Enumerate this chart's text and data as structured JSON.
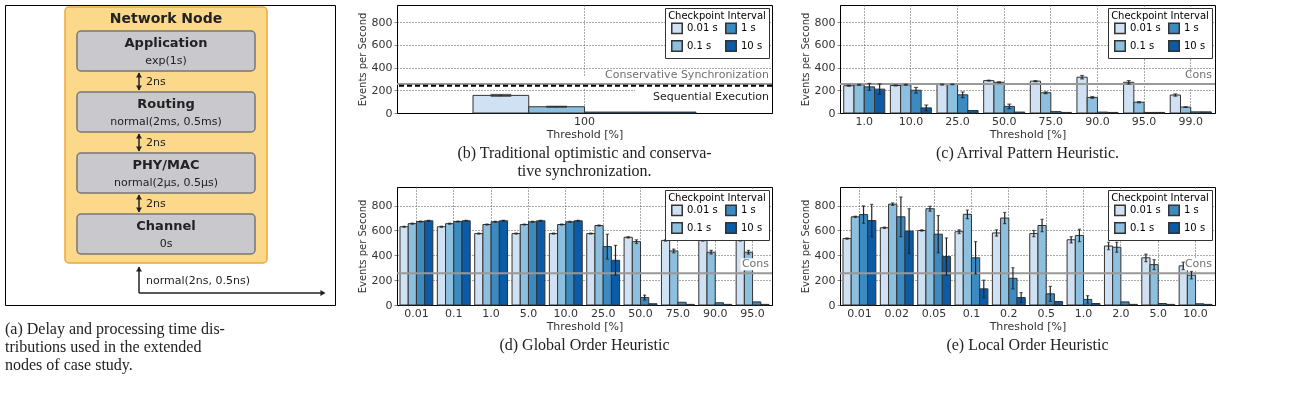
{
  "chart_data": [
    {
      "type": "other",
      "title": "Network Node",
      "annotations": [
        "Application",
        "exp(1s)",
        "2ns",
        "Routing",
        "normal(2ms, 0.5ms)",
        "2ns",
        "PHY/MAC",
        "normal(2µs, 0.5µs)",
        "2ns",
        "Channel",
        "0s",
        "normal(2ns, 0.5ns)",
        "(a) Delay and processing time dis-",
        "tributions used in the extended",
        "nodes of case study."
      ]
    },
    {
      "type": "bar",
      "categories": [
        "100"
      ],
      "xlabel": "Threshold [%]",
      "ylabel": "Events per Second",
      "legend_title": "Checkpoint Interval",
      "legend": "top right",
      "grid": true,
      "ylim": [
        0,
        950
      ],
      "yticks": [
        0,
        200,
        400,
        600,
        800
      ],
      "series": [
        {
          "name": "0.01 s",
          "color": "#cfe1f2",
          "values": [
            155
          ],
          "errors": [
            8
          ]
        },
        {
          "name": "0.1 s",
          "color": "#8dc0de",
          "values": [
            55
          ],
          "errors": [
            4
          ]
        },
        {
          "name": "1 s",
          "color": "#3b8bc2",
          "values": [
            8
          ]
        },
        {
          "name": "10 s",
          "color": "#0b5ba6",
          "values": [
            8
          ]
        }
      ],
      "ref_lines": [
        {
          "axis": "y",
          "value": 255,
          "label": "Conservative Synchronization",
          "color": "#999999",
          "line_style": "solid"
        },
        {
          "axis": "y",
          "value": 240,
          "label": "Sequential Execution",
          "color": "#000000",
          "line_style": "dashed"
        }
      ],
      "annotations": [
        "(b) Traditional optimistic and conserva-",
        "tive synchronization."
      ]
    },
    {
      "type": "bar",
      "categories": [
        "1.0",
        "10.0",
        "25.0",
        "50.0",
        "75.0",
        "90.0",
        "95.0",
        "99.0"
      ],
      "xlabel": "Threshold [%]",
      "ylabel": "Events per Second",
      "legend_title": "Checkpoint Interval",
      "legend": "top right",
      "grid": true,
      "ylim": [
        0,
        950
      ],
      "yticks": [
        0,
        200,
        400,
        600,
        800
      ],
      "series": [
        {
          "name": "0.01 s",
          "color": "#cfe1f2",
          "values": [
            240,
            242,
            250,
            285,
            280,
            315,
            270,
            158
          ],
          "errors": [
            4,
            4,
            4,
            4,
            5,
            15,
            15,
            10
          ]
        },
        {
          "name": "0.1 s",
          "color": "#8dc0de",
          "values": [
            248,
            248,
            252,
            270,
            178,
            137,
            95,
            52
          ],
          "errors": [
            4,
            3,
            3,
            5,
            8,
            8,
            5,
            3
          ]
        },
        {
          "name": "1 s",
          "color": "#3b8bc2",
          "values": [
            230,
            200,
            160,
            58,
            12,
            8,
            5,
            10
          ],
          "errors": [
            30,
            25,
            25,
            20,
            null,
            null,
            null,
            null
          ]
        },
        {
          "name": "10 s",
          "color": "#0b5ba6",
          "values": [
            210,
            45,
            22,
            8,
            5,
            5,
            5,
            10
          ],
          "errors": [
            45,
            25,
            null,
            null,
            null,
            null,
            null,
            null
          ]
        }
      ],
      "ref_lines": [
        {
          "axis": "y",
          "value": 255,
          "label": "Cons",
          "color": "#999999",
          "line_style": "solid"
        }
      ],
      "annotations": [
        "(c) Arrival Pattern Heuristic."
      ]
    },
    {
      "type": "bar",
      "categories": [
        "0.01",
        "0.1",
        "1.0",
        "5.0",
        "10.0",
        "25.0",
        "50.0",
        "75.0",
        "90.0",
        "95.0"
      ],
      "xlabel": "Threshold [%]",
      "ylabel": "Events per Second",
      "legend_title": "Checkpoint Interval",
      "legend": "top right",
      "grid": true,
      "ylim": [
        0,
        950
      ],
      "yticks": [
        0,
        200,
        400,
        600,
        800
      ],
      "series": [
        {
          "name": "0.01 s",
          "color": "#cfe1f2",
          "values": [
            630,
            630,
            575,
            575,
            575,
            575,
            545,
            520,
            520,
            520
          ],
          "errors": [
            4,
            4,
            4,
            4,
            4,
            4,
            5,
            5,
            5,
            5
          ]
        },
        {
          "name": "0.1 s",
          "color": "#8dc0de",
          "values": [
            655,
            655,
            648,
            648,
            648,
            640,
            510,
            435,
            425,
            425
          ],
          "errors": [
            4,
            4,
            4,
            4,
            4,
            4,
            15,
            15,
            15,
            15
          ]
        },
        {
          "name": "1 s",
          "color": "#3b8bc2",
          "values": [
            672,
            672,
            670,
            670,
            670,
            470,
            60,
            22,
            18,
            25
          ],
          "errors": [
            4,
            4,
            4,
            4,
            4,
            100,
            20,
            null,
            null,
            null
          ]
        },
        {
          "name": "10 s",
          "color": "#0b5ba6",
          "values": [
            678,
            678,
            678,
            678,
            678,
            360,
            10,
            5,
            5,
            5
          ],
          "errors": [
            4,
            4,
            4,
            4,
            4,
            120,
            null,
            null,
            null,
            null
          ]
        }
      ],
      "ref_lines": [
        {
          "axis": "y",
          "value": 255,
          "label": "Cons",
          "color": "#999999",
          "line_style": "solid"
        }
      ],
      "annotations": [
        "(d) Global Order Heuristic"
      ]
    },
    {
      "type": "bar",
      "categories": [
        "0.01",
        "0.02",
        "0.05",
        "0.1",
        "0.2",
        "0.5",
        "1.0",
        "2.0",
        "5.0",
        "10.0"
      ],
      "xlabel": "Threshold [%]",
      "ylabel": "Events per Second",
      "legend_title": "Checkpoint Interval",
      "legend": "top right",
      "grid": true,
      "ylim": [
        0,
        950
      ],
      "yticks": [
        0,
        200,
        400,
        600,
        800
      ],
      "series": [
        {
          "name": "0.01 s",
          "color": "#cfe1f2",
          "values": [
            535,
            622,
            600,
            590,
            580,
            575,
            525,
            475,
            380,
            315
          ],
          "errors": [
            5,
            5,
            5,
            15,
            25,
            25,
            25,
            30,
            30,
            30
          ]
        },
        {
          "name": "0.1 s",
          "color": "#8dc0de",
          "values": [
            710,
            812,
            775,
            730,
            700,
            640,
            560,
            465,
            325,
            240
          ],
          "errors": [
            5,
            10,
            20,
            35,
            45,
            50,
            50,
            40,
            40,
            30
          ]
        },
        {
          "name": "1 s",
          "color": "#3b8bc2",
          "values": [
            728,
            710,
            570,
            380,
            215,
            90,
            45,
            25,
            12,
            10
          ],
          "errors": [
            70,
            160,
            150,
            130,
            85,
            60,
            30,
            null,
            null,
            null
          ]
        },
        {
          "name": "10 s",
          "color": "#0b5ba6",
          "values": [
            680,
            595,
            390,
            130,
            60,
            28,
            12,
            5,
            5,
            5
          ],
          "errors": [
            130,
            180,
            150,
            70,
            40,
            null,
            null,
            null,
            null,
            null
          ]
        }
      ],
      "ref_lines": [
        {
          "axis": "y",
          "value": 255,
          "label": "Cons",
          "color": "#999999",
          "line_style": "solid"
        }
      ],
      "annotations": [
        "(e) Local Order Heuristic"
      ]
    }
  ]
}
